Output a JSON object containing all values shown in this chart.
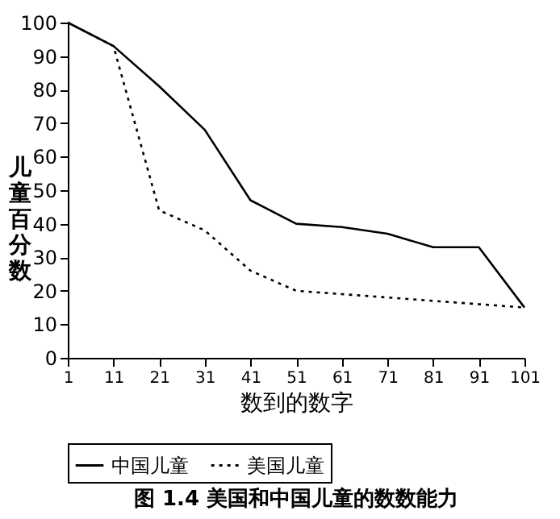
{
  "chart_data": {
    "type": "line",
    "title": "图 1.4   美国和中国儿童的数数能力",
    "xlabel": "数到的数字",
    "ylabel": "儿童百分数",
    "x": [
      1,
      11,
      21,
      31,
      41,
      51,
      61,
      71,
      81,
      91,
      101
    ],
    "series": [
      {
        "name": "中国儿童",
        "color": "#000000",
        "line_style": "solid",
        "values": [
          100,
          93,
          81,
          68,
          47,
          40,
          39,
          37,
          33,
          33,
          15
        ]
      },
      {
        "name": "美国儿童",
        "color": "#000000",
        "line_style": "dotted",
        "values": [
          100,
          93,
          44,
          38,
          26,
          20,
          19,
          18,
          17,
          16,
          15
        ]
      }
    ],
    "xlim": [
      1,
      101
    ],
    "xticks": [
      1,
      11,
      21,
      31,
      41,
      51,
      61,
      71,
      81,
      91,
      101
    ],
    "ylim": [
      0,
      100
    ],
    "yticks": [
      0,
      10,
      20,
      30,
      40,
      50,
      60,
      70,
      80,
      90,
      100
    ],
    "grid": false,
    "legend": "bottom",
    "marker": "none"
  }
}
